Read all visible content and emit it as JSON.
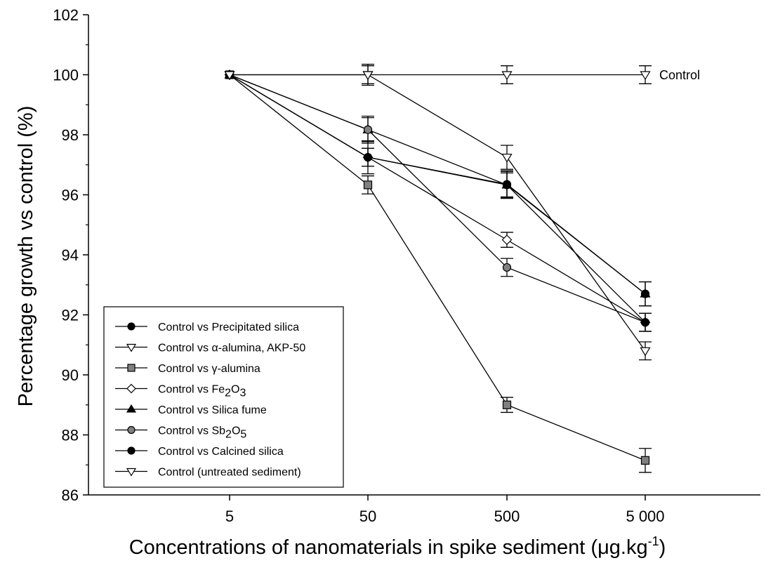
{
  "chart_data": {
    "type": "line",
    "xlabel_main": "Concentrations of nanomaterials in spike sediment (",
    "xlabel_mu": "μg.kg",
    "xlabel_sup": "-1",
    "xlabel_close": ")",
    "ylabel": "Percentage growth vs control (%)",
    "x_scale": "log",
    "categories": [
      "5",
      "50",
      "500",
      "5 000"
    ],
    "x": [
      5,
      50,
      500,
      5000
    ],
    "ylim": [
      86,
      102
    ],
    "yticks": [
      "86",
      "88",
      "90",
      "92",
      "94",
      "96",
      "98",
      "100",
      "102"
    ],
    "grid": false,
    "legend_position": "bottom-left",
    "annotation": "Control",
    "series": [
      {
        "name": "Control vs Precipitated silica",
        "marker": "circle",
        "fill": "#000000",
        "values": [
          100,
          97.25,
          96.35,
          92.7
        ],
        "err": [
          0,
          0.3,
          0.45,
          0.4
        ]
      },
      {
        "name": "Control vs α-alumina, AKP-50",
        "marker": "triangle-down",
        "fill": "#ffffff",
        "values": [
          100,
          100,
          97.25,
          90.8
        ],
        "err": [
          0,
          0.3,
          0.4,
          0.3
        ]
      },
      {
        "name": "Control vs  γ-alumina",
        "marker": "square",
        "fill": "#808080",
        "values": [
          100,
          96.33,
          89,
          87.15
        ],
        "err": [
          0,
          0.3,
          0.25,
          0.4
        ]
      },
      {
        "name": "Control vs Fe2O3",
        "name_parts": [
          "Control vs Fe",
          "2",
          "O",
          "3"
        ],
        "marker": "diamond",
        "fill": "#ffffff",
        "values": [
          100,
          97.25,
          94.5,
          91.75
        ],
        "err": [
          0,
          0.3,
          0.25,
          0.3
        ]
      },
      {
        "name": "Control vs Silica fume",
        "marker": "triangle-up",
        "fill": "#000000",
        "values": [
          100,
          98.17,
          96.33,
          92.7
        ],
        "err": [
          0,
          0.4,
          0.4,
          0.4
        ]
      },
      {
        "name": "Control vs Sb2O5",
        "name_parts": [
          "Control vs Sb",
          "2",
          "O",
          "5"
        ],
        "marker": "circle",
        "fill": "#808080",
        "values": [
          100,
          98.17,
          93.58,
          91.75
        ],
        "err": [
          0,
          0.45,
          0.3,
          0.3
        ]
      },
      {
        "name": "Control vs Calcined silica",
        "marker": "circle",
        "fill": "#000000",
        "values": [
          100,
          97.25,
          96.33,
          91.75
        ],
        "err": [
          0,
          0.55,
          0.45,
          0.3
        ]
      },
      {
        "name": "Control (untreated sediment)",
        "marker": "triangle-down",
        "fill": "#ffffff",
        "values": [
          100,
          100,
          100,
          100
        ],
        "err": [
          0,
          0.35,
          0.3,
          0.3
        ]
      }
    ]
  }
}
